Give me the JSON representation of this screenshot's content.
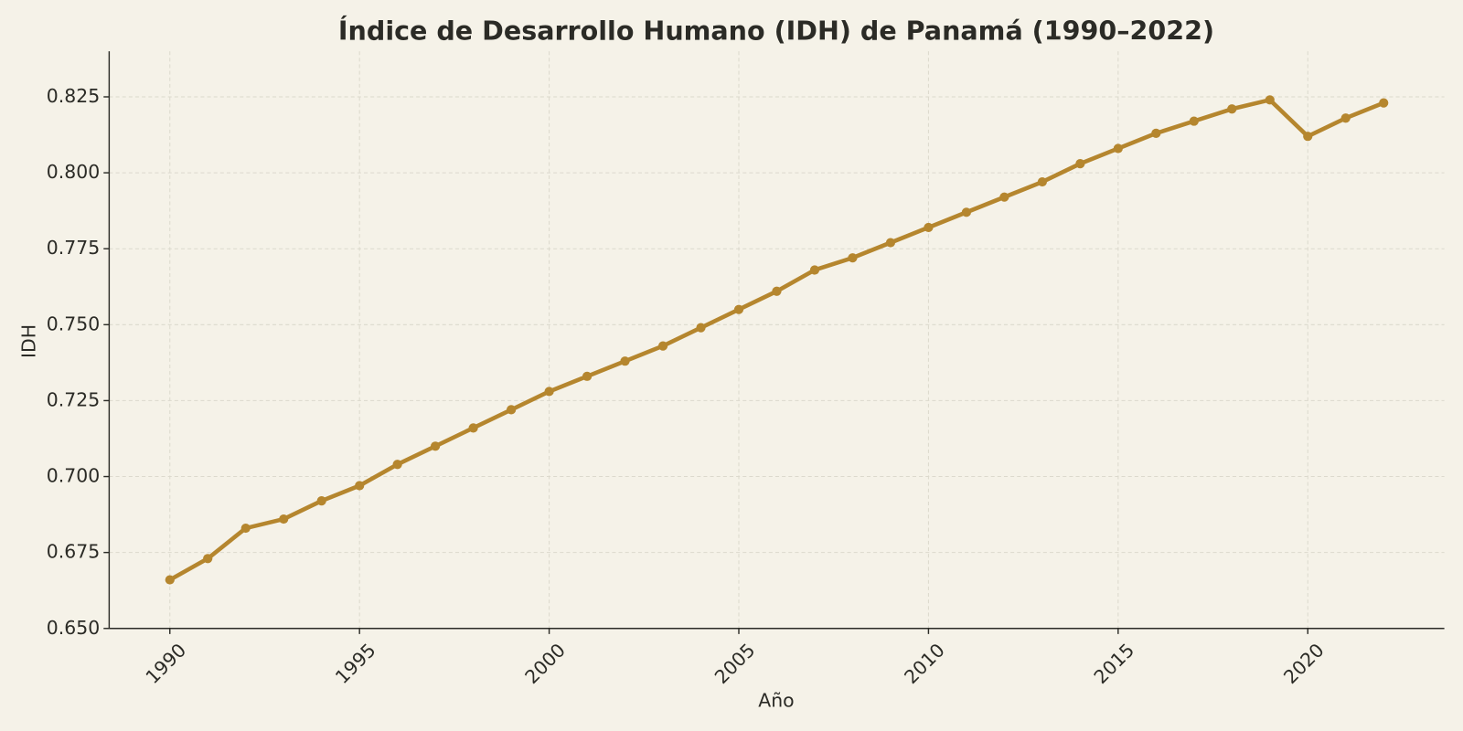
{
  "chart_data": {
    "type": "line",
    "title": "Índice de Desarrollo Humano (IDH) de Panamá (1990–2022)",
    "x_label": "Año",
    "y_label": "IDH",
    "x": [
      1990,
      1991,
      1992,
      1993,
      1994,
      1995,
      1996,
      1997,
      1998,
      1999,
      2000,
      2001,
      2002,
      2003,
      2004,
      2005,
      2006,
      2007,
      2008,
      2009,
      2010,
      2011,
      2012,
      2013,
      2014,
      2015,
      2016,
      2017,
      2018,
      2019,
      2020,
      2021,
      2022
    ],
    "values": [
      0.666,
      0.673,
      0.683,
      0.686,
      0.692,
      0.697,
      0.704,
      0.71,
      0.716,
      0.722,
      0.728,
      0.733,
      0.738,
      0.743,
      0.749,
      0.755,
      0.761,
      0.768,
      0.772,
      0.777,
      0.782,
      0.787,
      0.792,
      0.797,
      0.803,
      0.808,
      0.813,
      0.817,
      0.821,
      0.824,
      0.812,
      0.818,
      0.823
    ],
    "color": "#b5862e",
    "xlim": [
      1988.4,
      2023.6
    ],
    "xticks": [
      1990,
      1995,
      2000,
      2005,
      2010,
      2015,
      2020
    ],
    "ylim": [
      0.65,
      0.84
    ],
    "yticks": [
      {
        "value": 0.65,
        "label": "0.650"
      },
      {
        "value": 0.675,
        "label": "0.675"
      },
      {
        "value": 0.7,
        "label": "0.700"
      },
      {
        "value": 0.725,
        "label": "0.725"
      },
      {
        "value": 0.75,
        "label": "0.750"
      },
      {
        "value": 0.775,
        "label": "0.775"
      },
      {
        "value": 0.8,
        "label": "0.800"
      },
      {
        "value": 0.825,
        "label": "0.825"
      }
    ],
    "grid": true
  }
}
